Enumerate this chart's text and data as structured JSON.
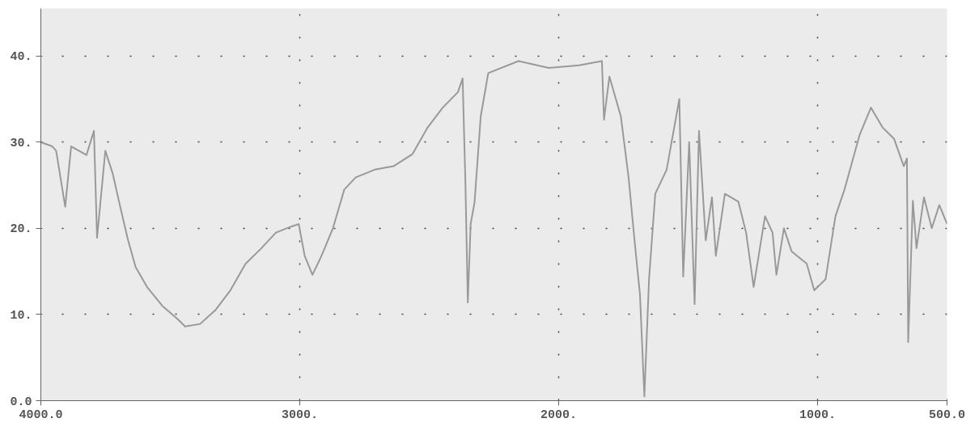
{
  "chart_data": {
    "type": "line",
    "color": "#999999",
    "grid": true,
    "xlim": [
      4000,
      500
    ],
    "ylim": [
      0,
      45.5
    ],
    "xticks": [
      {
        "value": 4000,
        "label": "4000.0"
      },
      {
        "value": 3000,
        "label": "3000."
      },
      {
        "value": 2000,
        "label": "2000."
      },
      {
        "value": 1000,
        "label": "1000."
      },
      {
        "value": 500,
        "label": "500.0"
      }
    ],
    "yticks": [
      {
        "value": 0,
        "label": "0.0"
      },
      {
        "value": 10,
        "label": "10."
      },
      {
        "value": 20,
        "label": "20."
      },
      {
        "value": 30,
        "label": "30."
      },
      {
        "value": 40,
        "label": "40."
      }
    ],
    "x": [
      4000,
      3956,
      3941,
      3906,
      3883,
      3824,
      3795,
      3783,
      3751,
      3722,
      3692,
      3663,
      3634,
      3590,
      3531,
      3473,
      3443,
      3385,
      3326,
      3268,
      3209,
      3151,
      3092,
      3033,
      3004,
      2981,
      2951,
      2916,
      2872,
      2828,
      2784,
      2711,
      2638,
      2565,
      2506,
      2448,
      2389,
      2371,
      2360,
      2351,
      2340,
      2325,
      2301,
      2272,
      2155,
      2038,
      1921,
      1833,
      1825,
      1804,
      1760,
      1730,
      1707,
      1686,
      1669,
      1651,
      1627,
      1583,
      1534,
      1519,
      1496,
      1475,
      1458,
      1432,
      1408,
      1393,
      1358,
      1306,
      1276,
      1247,
      1203,
      1174,
      1159,
      1130,
      1100,
      1042,
      1013,
      969,
      931,
      896,
      838,
      794,
      749,
      705,
      667,
      655,
      650,
      632,
      618,
      589,
      559,
      530,
      500
    ],
    "values": [
      30.0,
      29.5,
      29.0,
      22.5,
      29.5,
      28.5,
      31.3,
      18.9,
      29.0,
      26.3,
      22.3,
      18.6,
      15.5,
      13.2,
      11.0,
      9.5,
      8.6,
      8.9,
      10.5,
      12.8,
      15.9,
      17.6,
      19.5,
      20.2,
      20.5,
      16.8,
      14.6,
      16.8,
      20.0,
      24.5,
      25.9,
      26.8,
      27.2,
      28.6,
      31.7,
      34.0,
      35.8,
      37.4,
      25.0,
      11.4,
      20.5,
      23.0,
      33.0,
      38.0,
      39.4,
      38.6,
      38.9,
      39.4,
      32.6,
      37.6,
      33.0,
      25.9,
      18.6,
      12.3,
      0.5,
      14.1,
      24.0,
      26.8,
      35.0,
      14.4,
      30.0,
      11.2,
      31.3,
      18.6,
      23.6,
      16.8,
      24.0,
      23.1,
      19.5,
      13.2,
      21.4,
      19.5,
      14.6,
      20.0,
      17.3,
      15.9,
      12.8,
      14.1,
      21.4,
      24.5,
      30.8,
      34.0,
      31.7,
      30.4,
      27.2,
      28.1,
      6.8,
      23.2,
      17.7,
      23.6,
      20.0,
      22.7,
      20.5
    ]
  }
}
